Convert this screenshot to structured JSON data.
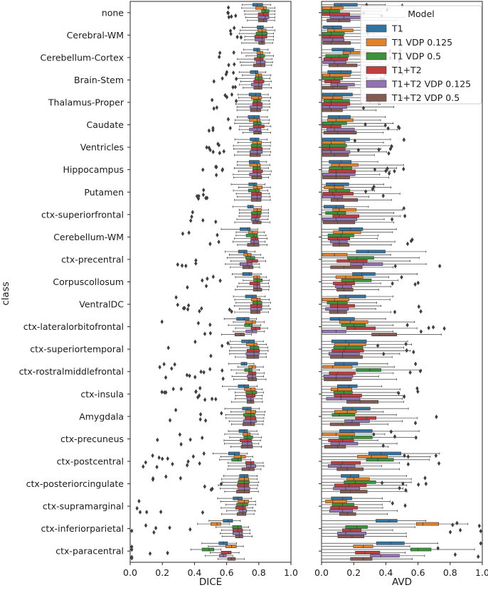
{
  "chart_data": {
    "type": "boxplot",
    "orientation": "horizontal",
    "ylabel": "class",
    "categories": [
      "none",
      "Cerebral-WM",
      "Cerebellum-Cortex",
      "Brain-Stem",
      "Thalamus-Proper",
      "Caudate",
      "Ventricles",
      "Hippocampus",
      "Putamen",
      "ctx-superiorfrontal",
      "Cerebellum-WM",
      "ctx-precentral",
      "Corpuscollosum",
      "VentralDC",
      "ctx-lateralorbitofrontal",
      "ctx-superiortemporal",
      "ctx-rostralmiddlefrontal",
      "ctx-insula",
      "Amygdala",
      "ctx-precuneus",
      "ctx-postcentral",
      "ctx-posteriorcingulate",
      "ctx-supramarginal",
      "ctx-inferiorparietal",
      "ctx-paracentral"
    ],
    "legend": {
      "title": "Model",
      "position": "top-right",
      "entries": [
        {
          "name": "T1",
          "color": "#3274a1"
        },
        {
          "name": "T1 VDP 0.125",
          "color": "#e1812c"
        },
        {
          "name": "T1 VDP 0.5",
          "color": "#3a923a"
        },
        {
          "name": "T1+T2",
          "color": "#c03d3e"
        },
        {
          "name": "T1+T2 VDP 0.125",
          "color": "#9372b2"
        },
        {
          "name": "T1+T2 VDP 0.5",
          "color": "#845b53"
        }
      ]
    },
    "panels": [
      {
        "xlabel": "DICE",
        "xlim": [
          0.0,
          1.0
        ],
        "xticks": [
          "0.0",
          "0.2",
          "0.4",
          "0.6",
          "0.8",
          "1.0"
        ],
        "median_approx": [
          [
            0.79,
            0.83,
            0.84,
            0.83,
            0.84,
            0.83
          ],
          [
            0.81,
            0.82,
            0.82,
            0.82,
            0.82,
            0.82
          ],
          [
            0.79,
            0.81,
            0.81,
            0.81,
            0.81,
            0.81
          ],
          [
            0.78,
            0.8,
            0.8,
            0.8,
            0.8,
            0.8
          ],
          [
            0.78,
            0.8,
            0.79,
            0.79,
            0.79,
            0.79
          ],
          [
            0.77,
            0.79,
            0.79,
            0.8,
            0.79,
            0.8
          ],
          [
            0.78,
            0.79,
            0.79,
            0.79,
            0.79,
            0.79
          ],
          [
            0.77,
            0.79,
            0.79,
            0.79,
            0.79,
            0.79
          ],
          [
            0.77,
            0.79,
            0.78,
            0.79,
            0.79,
            0.79
          ],
          [
            0.75,
            0.79,
            0.79,
            0.79,
            0.78,
            0.79
          ],
          [
            0.73,
            0.76,
            0.77,
            0.78,
            0.77,
            0.77
          ],
          [
            0.71,
            0.73,
            0.75,
            0.76,
            0.73,
            0.74
          ],
          [
            0.74,
            0.79,
            0.79,
            0.79,
            0.79,
            0.79
          ],
          [
            0.76,
            0.79,
            0.79,
            0.79,
            0.79,
            0.79
          ],
          [
            0.71,
            0.76,
            0.74,
            0.78,
            0.76,
            0.69
          ],
          [
            0.74,
            0.77,
            0.77,
            0.77,
            0.77,
            0.77
          ],
          [
            0.71,
            0.76,
            0.74,
            0.76,
            0.76,
            0.76
          ],
          [
            0.71,
            0.75,
            0.76,
            0.76,
            0.75,
            0.75
          ],
          [
            0.73,
            0.75,
            0.75,
            0.75,
            0.75,
            0.75
          ],
          [
            0.71,
            0.73,
            0.73,
            0.73,
            0.73,
            0.73
          ],
          [
            0.65,
            0.69,
            0.67,
            0.75,
            0.75,
            0.74
          ],
          [
            0.71,
            0.71,
            0.71,
            0.71,
            0.71,
            0.71
          ],
          [
            0.67,
            0.71,
            0.7,
            0.7,
            0.7,
            0.7
          ],
          [
            0.61,
            0.54,
            0.67,
            0.67,
            0.68,
            0.68
          ],
          [
            0.58,
            0.63,
            0.49,
            0.61,
            0.58,
            0.63
          ]
        ]
      },
      {
        "xlabel": "AVD",
        "xlim": [
          0.0,
          1.0
        ],
        "xticks": [
          "0.0",
          "0.2",
          "0.4",
          "0.6",
          "0.8",
          "1.0"
        ],
        "median_approx": [
          [
            0.12,
            0.06,
            0.05,
            0.05,
            0.14,
            0.11
          ],
          [
            0.07,
            0.08,
            0.06,
            0.05,
            0.07,
            0.06
          ],
          [
            0.14,
            0.18,
            0.11,
            0.06,
            0.08,
            0.1
          ],
          [
            0.12,
            0.05,
            0.08,
            0.06,
            0.1,
            0.07
          ],
          [
            0.08,
            0.07,
            0.06,
            0.06,
            0.05,
            0.06
          ],
          [
            0.11,
            0.09,
            0.07,
            0.06,
            0.08,
            0.1
          ],
          [
            0.08,
            0.06,
            0.05,
            0.05,
            0.06,
            0.08
          ],
          [
            0.12,
            0.11,
            0.13,
            0.09,
            0.09,
            0.09
          ],
          [
            0.08,
            0.08,
            0.09,
            0.07,
            0.08,
            0.1
          ],
          [
            0.09,
            0.11,
            0.1,
            0.11,
            0.09,
            0.1
          ],
          [
            0.18,
            0.13,
            0.12,
            0.1,
            0.11,
            0.11
          ],
          [
            0.29,
            0.08,
            0.22,
            0.17,
            0.26,
            0.14
          ],
          [
            0.25,
            0.15,
            0.2,
            0.15,
            0.13,
            0.14
          ],
          [
            0.15,
            0.08,
            0.1,
            0.1,
            0.1,
            0.1
          ],
          [
            0.11,
            0.18,
            0.2,
            0.21,
            0.09,
            0.36
          ],
          [
            0.15,
            0.17,
            0.15,
            0.14,
            0.13,
            0.13
          ],
          [
            0.14,
            0.07,
            0.3,
            0.1,
            0.09,
            0.09
          ],
          [
            0.17,
            0.1,
            0.14,
            0.12,
            0.12,
            0.24
          ],
          [
            0.19,
            0.16,
            0.11,
            0.28,
            0.19,
            0.13
          ],
          [
            0.19,
            0.09,
            0.19,
            0.13,
            0.11,
            0.1
          ],
          [
            0.37,
            0.31,
            0.35,
            0.13,
            0.12,
            0.16
          ],
          [
            0.18,
            0.2,
            0.21,
            0.17,
            0.15,
            0.18
          ],
          [
            0.13,
            0.07,
            0.13,
            0.11,
            0.13,
            0.16
          ],
          [
            0.42,
            0.63,
            0.22,
            0.18,
            0.15,
            0.19
          ],
          [
            0.43,
            0.26,
            0.6,
            0.27,
            0.37,
            0.26
          ]
        ]
      }
    ]
  }
}
